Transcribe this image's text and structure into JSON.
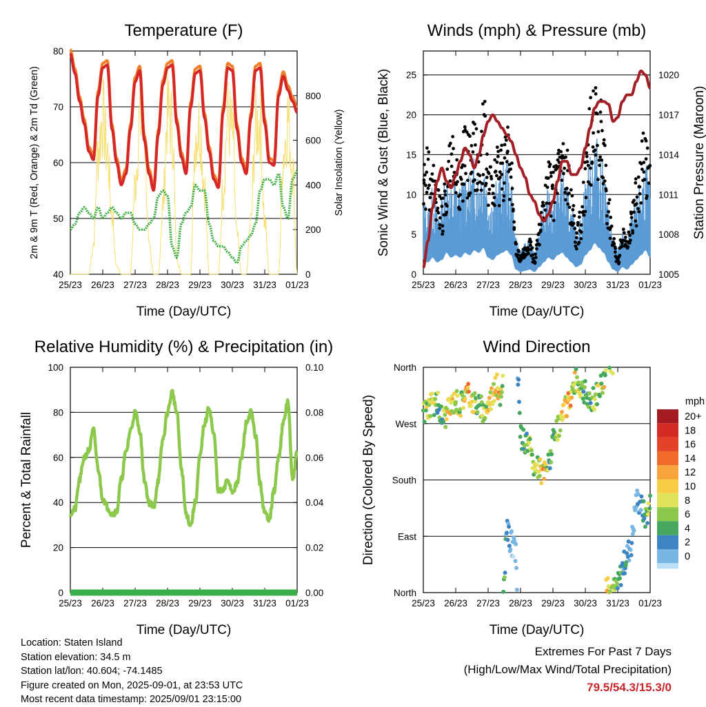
{
  "chart_data": [
    {
      "type": "line",
      "title": "Temperature (F)",
      "xlabel": "Time (Day/UTC)",
      "ylabel": "2m & 9m T (Red, Orange) & 2m Td (Green)",
      "y2label": "Solar Insolation (Yellow)",
      "x_ticks": [
        "25/23",
        "26/23",
        "27/23",
        "28/23",
        "29/23",
        "30/23",
        "31/23",
        "01/23"
      ],
      "ylim": [
        40,
        80
      ],
      "yticks": [
        40,
        50,
        60,
        70,
        80
      ],
      "y2lim": [
        0,
        1000
      ],
      "y2ticks": [
        0,
        200,
        400,
        600,
        800
      ],
      "grid": true,
      "colors": {
        "t2m": "#d62728",
        "t9m": "#f07f2a",
        "td": "#3eae44",
        "solar": "#f7dd6b"
      },
      "series": [
        {
          "key": "t2m",
          "values": [
            79.5,
            76,
            71,
            67,
            62,
            60.5,
            72,
            77,
            77.5,
            66,
            60,
            56,
            58,
            66,
            74.5,
            76.5,
            64,
            58,
            55,
            65,
            74,
            77,
            77.5,
            67,
            61,
            58,
            70,
            76,
            76.5,
            68,
            62,
            57,
            55.5,
            69,
            77,
            76.5,
            66,
            60,
            58,
            68,
            76.5,
            77,
            67,
            60,
            59.5,
            72,
            75.5,
            73,
            71,
            69
          ]
        },
        {
          "key": "td",
          "values": [
            48,
            49,
            51,
            52,
            51,
            50,
            52,
            50,
            51,
            52,
            51,
            50,
            51,
            51,
            49,
            48,
            48,
            49,
            50,
            54,
            55,
            54,
            45,
            43,
            49,
            51,
            52,
            56,
            55,
            55,
            49,
            46,
            45,
            45,
            44,
            43,
            42,
            45,
            46,
            47,
            49,
            55,
            57,
            57,
            56,
            58,
            52,
            50,
            57,
            58.5
          ]
        },
        {
          "key": "solar",
          "values": [
            0,
            0,
            0,
            0,
            0,
            180,
            720,
            910,
            700,
            350,
            40,
            0,
            0,
            0,
            520,
            900,
            820,
            150,
            0,
            0,
            400,
            930,
            860,
            100,
            0,
            0,
            0,
            820,
            860,
            500,
            0,
            0,
            0,
            500,
            900,
            820,
            220,
            0,
            0,
            300,
            850,
            880,
            300,
            0,
            0,
            0,
            700,
            900,
            620,
            0
          ]
        }
      ]
    },
    {
      "type": "scatter",
      "title": "Winds (mph) & Pressure (mb)",
      "xlabel": "Time (Day/UTC)",
      "ylabel": "Sonic Wind & Gust (Blue, Black)",
      "y2label": "Station Pressure (Maroon)",
      "x_ticks": [
        "25/23",
        "26/23",
        "27/23",
        "28/23",
        "29/23",
        "30/23",
        "31/23",
        "01/23"
      ],
      "ylim": [
        0,
        28
      ],
      "yticks": [
        0,
        5,
        10,
        15,
        20,
        25
      ],
      "y2lim": [
        1005,
        1021.8
      ],
      "y2ticks": [
        1005,
        1008,
        1011,
        1014,
        1017,
        1020
      ],
      "grid": true,
      "colors": {
        "wind": "#5b9bd5",
        "gust": "#000000",
        "pressure": "#a31f25"
      },
      "series": [
        {
          "key": "wind",
          "values": [
            6,
            5,
            7,
            5,
            6,
            9,
            7,
            8,
            7,
            9,
            8,
            10,
            9,
            11,
            7,
            6,
            8,
            9,
            10,
            8,
            2,
            1,
            1.5,
            2,
            1,
            3,
            5,
            7,
            6,
            8,
            9,
            7,
            5,
            3,
            4,
            8,
            10,
            13,
            11,
            9,
            5,
            2,
            1,
            3,
            2,
            4,
            6,
            8,
            10,
            7
          ]
        },
        {
          "key": "gust",
          "values": [
            11,
            14,
            12,
            10,
            8,
            12,
            15,
            14,
            12,
            16,
            15,
            17,
            14,
            19,
            13,
            11,
            14,
            15,
            16,
            13,
            4,
            2,
            3,
            4,
            2,
            6,
            9,
            12,
            11,
            14,
            15,
            13,
            10,
            5,
            7,
            13,
            18,
            22,
            19,
            16,
            9,
            4,
            2,
            5,
            4,
            7,
            10,
            14,
            16,
            12
          ]
        },
        {
          "key": "pressure",
          "values": [
            1005.5,
            1007.5,
            1010,
            1012,
            1013,
            1012,
            1011.5,
            1012.5,
            1013.5,
            1014.5,
            1014,
            1013,
            1014,
            1015.5,
            1016.5,
            1017,
            1016.5,
            1016,
            1015.5,
            1015,
            1014,
            1013,
            1012.3,
            1011,
            1010.5,
            1009.5,
            1009,
            1009.5,
            1010.5,
            1012,
            1013.5,
            1013.5,
            1012.5,
            1012.5,
            1013,
            1014.5,
            1016,
            1017.5,
            1018,
            1018,
            1017.8,
            1016.5,
            1016.8,
            1018,
            1018.5,
            1018.5,
            1019.5,
            1020.3,
            1020,
            1019
          ]
        }
      ]
    },
    {
      "type": "line",
      "title": "Relative Humidity (%) & Precipitation (in)",
      "xlabel": "Time (Day/UTC)",
      "ylabel": "Percent & Total Rainfall",
      "x_ticks": [
        "25/23",
        "26/23",
        "27/23",
        "28/23",
        "29/23",
        "30/23",
        "31/23",
        "01/23"
      ],
      "ylim": [
        0,
        100
      ],
      "yticks": [
        0,
        20,
        40,
        60,
        80,
        100
      ],
      "y2lim": [
        0,
        0.1
      ],
      "y2ticks": [
        "0.00",
        "0.02",
        "0.04",
        "0.06",
        "0.08",
        "0.10"
      ],
      "grid": true,
      "colors": {
        "rh": "#8cc84b",
        "precip": "#3cae4a"
      },
      "series": [
        {
          "key": "rh",
          "values": [
            35,
            37,
            50,
            60,
            63,
            72,
            55,
            42,
            38,
            35,
            36,
            50,
            62,
            72,
            80,
            72,
            50,
            40,
            38,
            50,
            68,
            80,
            89,
            80,
            55,
            35,
            30,
            40,
            60,
            75,
            82,
            70,
            45,
            45,
            50,
            45,
            48,
            60,
            75,
            80,
            70,
            48,
            35,
            33,
            45,
            60,
            75,
            85,
            50,
            62
          ]
        },
        {
          "key": "precip",
          "values": [
            0,
            0,
            0,
            0,
            0,
            0,
            0,
            0,
            0,
            0,
            0,
            0,
            0,
            0,
            0,
            0,
            0,
            0,
            0,
            0,
            0,
            0,
            0,
            0,
            0,
            0,
            0,
            0,
            0,
            0,
            0,
            0,
            0,
            0,
            0,
            0,
            0,
            0,
            0,
            0,
            0,
            0,
            0,
            0,
            0,
            0,
            0,
            0,
            0,
            0
          ]
        }
      ]
    },
    {
      "type": "scatter",
      "title": "Wind Direction",
      "xlabel": "Time (Day/UTC)",
      "ylabel": "Direction (Colored By Speed)",
      "x_ticks": [
        "25/23",
        "26/23",
        "27/23",
        "28/23",
        "29/23",
        "30/23",
        "31/23",
        "01/23"
      ],
      "ylim": [
        0,
        360
      ],
      "ytick_labels": [
        "North",
        "East",
        "South",
        "West",
        "North"
      ],
      "grid": true,
      "legend": {
        "title": "mph",
        "labels": [
          "20+",
          "18",
          "16",
          "14",
          "12",
          "10",
          "8",
          "6",
          "4",
          "2",
          "0"
        ],
        "placement": "right"
      },
      "colors": {
        "scale": [
          "#a51c20",
          "#d62a25",
          "#e5422a",
          "#f06a2b",
          "#f8a43c",
          "#f7cc46",
          "#e2e25a",
          "#8cc84b",
          "#45a85c",
          "#3d84c2",
          "#7ab6e3",
          "#b7e0f6"
        ]
      },
      "series": [
        {
          "key": "direction",
          "values": [
            290,
            295,
            300,
            305,
            280,
            285,
            300,
            310,
            300,
            320,
            315,
            305,
            300,
            290,
            300,
            320,
            330,
            310,
            100,
            80,
            60,
            250,
            240,
            230,
            200,
            195,
            190,
            205,
            240,
            260,
            280,
            300,
            320,
            340,
            330,
            320,
            300,
            310,
            330,
            340,
            20,
            5,
            10,
            40,
            60,
            80,
            150,
            140,
            120,
            140
          ]
        },
        {
          "key": "speed",
          "values": [
            8,
            10,
            9,
            7,
            6,
            9,
            11,
            10,
            8,
            12,
            13,
            9,
            6,
            8,
            10,
            11,
            12,
            9,
            3,
            2,
            1,
            6,
            7,
            8,
            9,
            10,
            11,
            7,
            6,
            8,
            10,
            11,
            12,
            9,
            8,
            7,
            6,
            8,
            9,
            10,
            11,
            8,
            6,
            5,
            4,
            3,
            2,
            3,
            6,
            8
          ]
        }
      ]
    }
  ],
  "info": {
    "location": "Location: Staten Island",
    "elevation": "Station elevation: 34.5 m",
    "latlon": "Station lat/lon: 40.604; -74.1485",
    "created": "Figure created on Mon, 2025-09-01, at 23:53 UTC",
    "recent": "Most recent data timestamp: 2025/09/01 23:15:00"
  },
  "extremes": {
    "line1": "Extremes For Past 7 Days",
    "line2": "(High/Low/Max Wind/Total Precipitation)",
    "values": "79.5/54.3/15.3/0"
  }
}
